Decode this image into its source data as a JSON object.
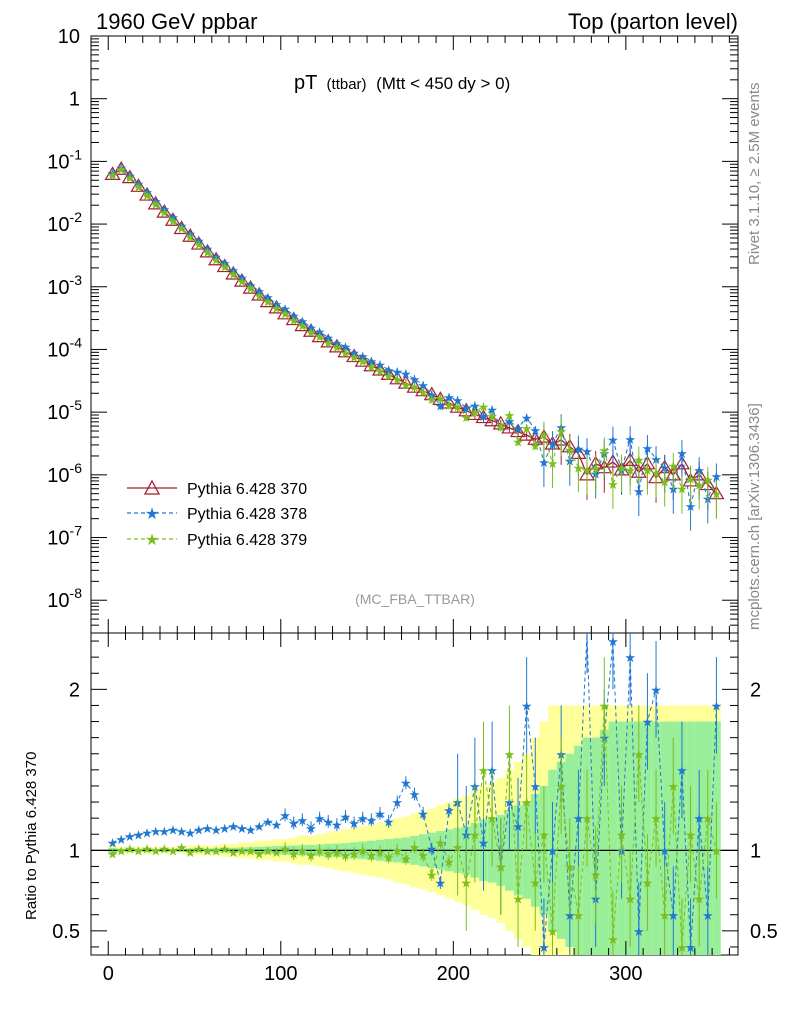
{
  "header": {
    "left": "1960 GeV ppbar",
    "right": "Top (parton level)"
  },
  "plot_title": {
    "main": "pT",
    "sub1": "(ttbar)",
    "sub2": "(Mtt < 450 dy > 0)"
  },
  "watermark": "(MC_FBA_TTBAR)",
  "side_text": {
    "rivet": "Rivet 3.1.10, ≥ 2.5M events",
    "mcplots": "mcplots.cern.ch [arXiv:1306.3436]"
  },
  "ratio_ylabel": "Ratio to Pythia 6.428 370",
  "legend": [
    {
      "name": "Pythia 6.428 370",
      "color": "#a01e2f",
      "marker": "triangle",
      "dash": "solid"
    },
    {
      "name": "Pythia 6.428 378",
      "color": "#1f78d1",
      "marker": "star",
      "dash": "dashed"
    },
    {
      "name": "Pythia 6.428 379",
      "color": "#7cbd1f",
      "marker": "star",
      "dash": "dashed"
    }
  ],
  "chart_data": {
    "type": "line",
    "x_range": [
      -10,
      365
    ],
    "main_yscale": "log",
    "main_ylim": [
      3e-09,
      10
    ],
    "ratio_ylim": [
      0.35,
      2.35
    ],
    "x_ticks": [
      "0",
      "100",
      "200",
      "300"
    ],
    "main_y_ticks": [
      "10",
      "1",
      "10^-1",
      "10^-2",
      "10^-3",
      "10^-4",
      "10^-5",
      "10^-6",
      "10^-7",
      "10^-8"
    ],
    "ratio_y_ticks": [
      "0.5",
      "1",
      "2"
    ],
    "band_colors": {
      "outer": "#ffff99",
      "inner": "#99ee99"
    },
    "x": [
      2.5,
      7.5,
      12.5,
      17.5,
      22.5,
      27.5,
      32.5,
      37.5,
      42.5,
      47.5,
      52.5,
      57.5,
      62.5,
      67.5,
      72.5,
      77.5,
      82.5,
      87.5,
      92.5,
      97.5,
      102.5,
      107.5,
      112.5,
      117.5,
      122.5,
      127.5,
      132.5,
      137.5,
      142.5,
      147.5,
      152.5,
      157.5,
      162.5,
      167.5,
      172.5,
      177.5,
      182.5,
      187.5,
      192.5,
      197.5,
      202.5,
      207.5,
      212.5,
      217.5,
      222.5,
      227.5,
      232.5,
      237.5,
      242.5,
      247.5,
      252.5,
      257.5,
      262.5,
      267.5,
      272.5,
      277.5,
      282.5,
      287.5,
      292.5,
      297.5,
      302.5,
      307.5,
      312.5,
      317.5,
      322.5,
      327.5,
      332.5,
      337.5,
      342.5,
      347.5,
      352.5
    ],
    "series": [
      {
        "name": "Pythia 6.428 370",
        "values": [
          0.062,
          0.075,
          0.055,
          0.04,
          0.029,
          0.021,
          0.0155,
          0.0115,
          0.0085,
          0.0064,
          0.0048,
          0.0036,
          0.0027,
          0.0021,
          0.0016,
          0.00123,
          0.00095,
          0.00074,
          0.00058,
          0.00046,
          0.00037,
          0.0003,
          0.00024,
          0.000195,
          0.00016,
          0.000132,
          0.00011,
          9.2e-05,
          7.7e-05,
          6.5e-05,
          5.5e-05,
          4.7e-05,
          4e-05,
          3.4e-05,
          2.9e-05,
          2.5e-05,
          2.2e-05,
          1.9e-05,
          1.6e-05,
          1.4e-05,
          1.2e-05,
          1.05e-05,
          9.2e-06,
          8.2e-06,
          7.3e-06,
          6.5e-06,
          5.6e-06,
          4.9e-06,
          4.3e-06,
          3.7e-06,
          4e-06,
          3.1e-06,
          3.6e-06,
          2.8e-06,
          2.2e-06,
          1e-06,
          1.5e-06,
          1.3e-06,
          1.6e-06,
          1.2e-06,
          1.7e-06,
          1.1e-06,
          1.5e-06,
          9e-07,
          1.3e-06,
          1e-06,
          1.5e-06,
          8e-07,
          1e-06,
          7e-07,
          5e-07
        ]
      },
      {
        "name": "Pythia 6.428 378",
        "values": [
          1.05,
          1.07,
          1.09,
          1.1,
          1.11,
          1.12,
          1.12,
          1.13,
          1.12,
          1.11,
          1.13,
          1.14,
          1.13,
          1.14,
          1.15,
          1.14,
          1.13,
          1.15,
          1.18,
          1.16,
          1.22,
          1.17,
          1.19,
          1.14,
          1.2,
          1.18,
          1.16,
          1.21,
          1.17,
          1.2,
          1.19,
          1.23,
          1.18,
          1.3,
          1.42,
          1.35,
          1.23,
          1.01,
          0.8,
          1.25,
          1.3,
          1.1,
          1.4,
          1.05,
          1.5,
          0.9,
          1.3,
          1.15,
          1.9,
          1.4,
          0.4,
          1.0,
          1.6,
          0.6,
          1.2,
          2.4,
          0.7,
          1.7,
          2.3,
          1.0,
          2.2,
          0.5,
          1.8,
          2.0,
          1.0,
          0.6,
          1.5,
          0.4,
          1.2,
          0.6,
          1.9
        ]
      },
      {
        "name": "Pythia 6.428 379",
        "values": [
          0.98,
          1.0,
          1.01,
          1.0,
          1.01,
          1.0,
          1.01,
          1.0,
          1.02,
          0.99,
          1.01,
          1.0,
          1.0,
          1.01,
          0.99,
          1.0,
          1.0,
          0.98,
          1.0,
          0.99,
          1.01,
          0.98,
          1.0,
          0.97,
          1.0,
          0.98,
          0.99,
          0.97,
          0.98,
          1.0,
          0.97,
          0.99,
          0.96,
          1.0,
          0.95,
          1.02,
          0.97,
          0.85,
          1.05,
          0.93,
          1.02,
          0.8,
          1.1,
          1.5,
          1.2,
          0.9,
          1.6,
          0.7,
          1.3,
          0.8,
          1.1,
          0.5,
          1.4,
          0.9,
          0.6,
          1.2,
          0.85,
          1.9,
          0.45,
          1.1,
          0.7,
          1.6,
          0.8,
          1.2,
          0.6,
          1.4,
          0.4,
          1.1,
          0.7,
          1.2,
          1.0
        ]
      }
    ],
    "band_outer": [
      0.03,
      0.02,
      0.02,
      0.02,
      0.02,
      0.02,
      0.02,
      0.02,
      0.02,
      0.03,
      0.03,
      0.03,
      0.03,
      0.04,
      0.04,
      0.05,
      0.05,
      0.06,
      0.06,
      0.07,
      0.07,
      0.08,
      0.09,
      0.09,
      0.1,
      0.11,
      0.12,
      0.13,
      0.14,
      0.15,
      0.16,
      0.17,
      0.18,
      0.2,
      0.21,
      0.23,
      0.24,
      0.26,
      0.28,
      0.3,
      0.32,
      0.34,
      0.37,
      0.4,
      0.42,
      0.45,
      0.5,
      0.55,
      0.6,
      0.7,
      0.8,
      0.9,
      0.9,
      0.9,
      0.9,
      0.9,
      0.9,
      0.9,
      0.9,
      0.9,
      0.9,
      0.9,
      0.9,
      0.9,
      0.9,
      0.9,
      0.9,
      0.9,
      0.9,
      0.9,
      0.9
    ],
    "band_inner": [
      0.015,
      0.01,
      0.01,
      0.01,
      0.01,
      0.01,
      0.01,
      0.01,
      0.01,
      0.012,
      0.012,
      0.013,
      0.014,
      0.015,
      0.016,
      0.018,
      0.02,
      0.022,
      0.024,
      0.026,
      0.028,
      0.03,
      0.032,
      0.034,
      0.036,
      0.04,
      0.042,
      0.045,
      0.05,
      0.055,
      0.06,
      0.065,
      0.07,
      0.075,
      0.08,
      0.09,
      0.1,
      0.11,
      0.12,
      0.13,
      0.14,
      0.15,
      0.17,
      0.19,
      0.2,
      0.22,
      0.25,
      0.28,
      0.3,
      0.35,
      0.4,
      0.5,
      0.55,
      0.6,
      0.65,
      0.7,
      0.7,
      0.75,
      0.8,
      0.8,
      0.8,
      0.8,
      0.8,
      0.8,
      0.8,
      0.8,
      0.8,
      0.8,
      0.8,
      0.8,
      0.8
    ]
  }
}
